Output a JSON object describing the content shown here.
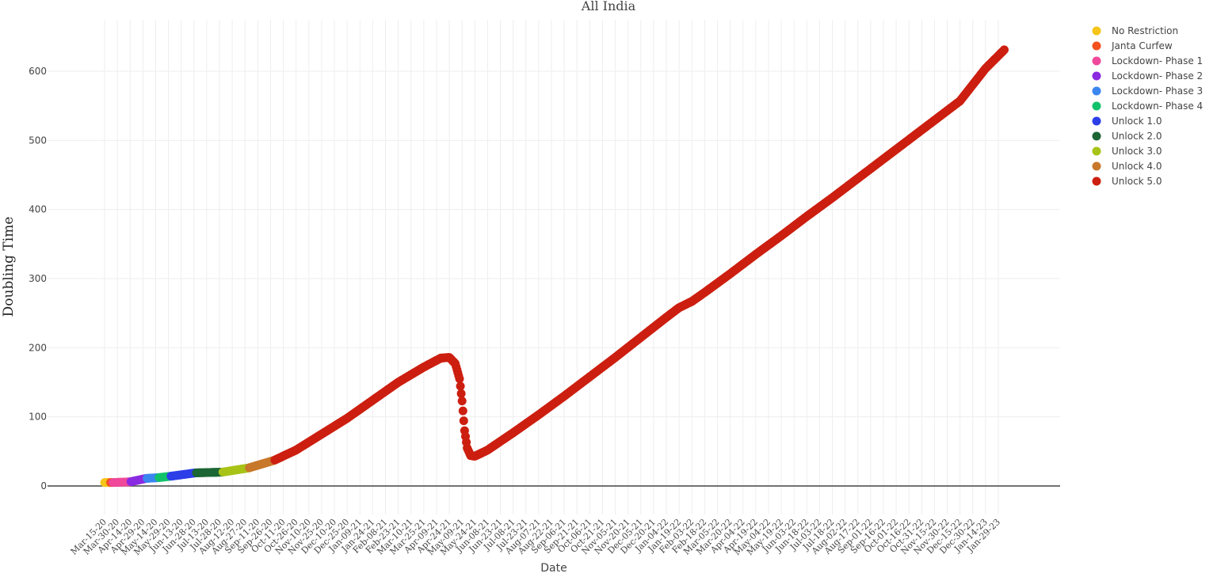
{
  "chart_data": {
    "type": "scatter",
    "title": "All India",
    "xlabel": "Date",
    "ylabel": "Doubling Time",
    "ylim": [
      -20,
      670
    ],
    "yticks": [
      0,
      100,
      200,
      300,
      400,
      500,
      600
    ],
    "x_tick_labels": [
      "Mar-15-20",
      "Mar-30-20",
      "Apr-14-20",
      "Apr-29-20",
      "May-14-20",
      "May-29-20",
      "Jun-13-20",
      "Jun-28-20",
      "Jul-13-20",
      "Jul-28-20",
      "Aug-12-20",
      "Aug-27-20",
      "Sep-11-20",
      "Sep-26-20",
      "Oct-11-20",
      "Oct-26-20",
      "Nov-10-20",
      "Nov-25-20",
      "Dec-10-20",
      "Dec-25-20",
      "Jan-09-21",
      "Jan-24-21",
      "Feb-08-21",
      "Feb-23-21",
      "Mar-10-21",
      "Mar-25-21",
      "Apr-09-21",
      "Apr-24-21",
      "May-09-21",
      "May-24-21",
      "Jun-08-21",
      "Jun-23-21",
      "Jul-08-21",
      "Jul-23-21",
      "Aug-07-21",
      "Aug-22-21",
      "Sep-06-21",
      "Sep-21-21",
      "Oct-06-21",
      "Oct-21-21",
      "Nov-05-21",
      "Nov-20-21",
      "Dec-05-21",
      "Dec-20-21",
      "Jan-04-22",
      "Jan-19-22",
      "Feb-03-22",
      "Feb-18-22",
      "Mar-05-22",
      "Mar-20-22",
      "Apr-04-22",
      "Apr-19-22",
      "May-04-22",
      "May-19-22",
      "Jun-03-22",
      "Jun-18-22",
      "Jul-03-22",
      "Jul-18-22",
      "Aug-02-22",
      "Aug-17-22",
      "Sep-01-22",
      "Sep-16-22",
      "Oct-01-22",
      "Oct-16-22",
      "Oct-31-22",
      "Nov-15-22",
      "Nov-30-22",
      "Dec-15-22",
      "Dec-30-22",
      "Jan-14-23",
      "Jan-29-23"
    ],
    "grid": true,
    "legend_position": "top-right",
    "series": [
      {
        "name": "No Restriction",
        "color": "#f5c518",
        "start_date": "Mar-15-20",
        "end_date": "Mar-21-20"
      },
      {
        "name": "Janta Curfew",
        "color": "#f4511e",
        "start_date": "Mar-22-20",
        "end_date": "Mar-24-20"
      },
      {
        "name": "Lockdown- Phase 1",
        "color": "#f0489a",
        "start_date": "Mar-25-20",
        "end_date": "Apr-14-20"
      },
      {
        "name": "Lockdown- Phase 2",
        "color": "#8a2be2",
        "start_date": "Apr-15-20",
        "end_date": "May-03-20"
      },
      {
        "name": "Lockdown- Phase 3",
        "color": "#3b86f0",
        "start_date": "May-04-20",
        "end_date": "May-17-20"
      },
      {
        "name": "Lockdown- Phase 4",
        "color": "#12c26b",
        "start_date": "May-18-20",
        "end_date": "May-31-20"
      },
      {
        "name": "Unlock 1.0",
        "color": "#2c3ee8",
        "start_date": "Jun-01-20",
        "end_date": "Jun-30-20"
      },
      {
        "name": "Unlock 2.0",
        "color": "#1b6634",
        "start_date": "Jul-01-20",
        "end_date": "Jul-31-20"
      },
      {
        "name": "Unlock 3.0",
        "color": "#a8c317",
        "start_date": "Aug-01-20",
        "end_date": "Aug-31-20"
      },
      {
        "name": "Unlock 4.0",
        "color": "#c8782a",
        "start_date": "Sep-01-20",
        "end_date": "Sep-30-20"
      },
      {
        "name": "Unlock 5.0",
        "color": "#cc1f10",
        "start_date": "Oct-01-20",
        "end_date": "Feb-05-23"
      }
    ],
    "curve_points": [
      {
        "date": "Mar-15-20",
        "y": 5
      },
      {
        "date": "Mar-25-20",
        "y": 5
      },
      {
        "date": "Apr-14-20",
        "y": 6
      },
      {
        "date": "May-03-20",
        "y": 11
      },
      {
        "date": "May-17-20",
        "y": 12
      },
      {
        "date": "May-31-20",
        "y": 14
      },
      {
        "date": "Jun-30-20",
        "y": 19
      },
      {
        "date": "Jul-31-20",
        "y": 20
      },
      {
        "date": "Aug-31-20",
        "y": 26
      },
      {
        "date": "Sep-30-20",
        "y": 37
      },
      {
        "date": "Oct-26-20",
        "y": 52
      },
      {
        "date": "Nov-25-20",
        "y": 75
      },
      {
        "date": "Dec-25-20",
        "y": 98
      },
      {
        "date": "Jan-24-21",
        "y": 124
      },
      {
        "date": "Feb-23-21",
        "y": 150
      },
      {
        "date": "Mar-25-21",
        "y": 172
      },
      {
        "date": "Apr-14-21",
        "y": 185
      },
      {
        "date": "Apr-24-21",
        "y": 186
      },
      {
        "date": "May-01-21",
        "y": 177
      },
      {
        "date": "May-06-21",
        "y": 155
      },
      {
        "date": "May-09-21",
        "y": 123
      },
      {
        "date": "May-12-21",
        "y": 80
      },
      {
        "date": "May-15-21",
        "y": 55
      },
      {
        "date": "May-19-21",
        "y": 44
      },
      {
        "date": "May-24-21",
        "y": 43
      },
      {
        "date": "Jun-08-21",
        "y": 52
      },
      {
        "date": "Jul-08-21",
        "y": 77
      },
      {
        "date": "Aug-07-21",
        "y": 103
      },
      {
        "date": "Sep-06-21",
        "y": 130
      },
      {
        "date": "Oct-06-21",
        "y": 158
      },
      {
        "date": "Nov-05-21",
        "y": 186
      },
      {
        "date": "Dec-05-21",
        "y": 215
      },
      {
        "date": "Jan-04-22",
        "y": 244
      },
      {
        "date": "Jan-19-22",
        "y": 258
      },
      {
        "date": "Feb-03-22",
        "y": 267
      },
      {
        "date": "Feb-18-22",
        "y": 280
      },
      {
        "date": "Mar-20-22",
        "y": 307
      },
      {
        "date": "Apr-19-22",
        "y": 335
      },
      {
        "date": "May-19-22",
        "y": 362
      },
      {
        "date": "Jun-18-22",
        "y": 390
      },
      {
        "date": "Jul-18-22",
        "y": 417
      },
      {
        "date": "Aug-17-22",
        "y": 445
      },
      {
        "date": "Sep-16-22",
        "y": 473
      },
      {
        "date": "Oct-16-22",
        "y": 501
      },
      {
        "date": "Nov-15-22",
        "y": 529
      },
      {
        "date": "Dec-15-22",
        "y": 557
      },
      {
        "date": "Jan-14-23",
        "y": 604
      },
      {
        "date": "Feb-05-23",
        "y": 631
      }
    ]
  }
}
